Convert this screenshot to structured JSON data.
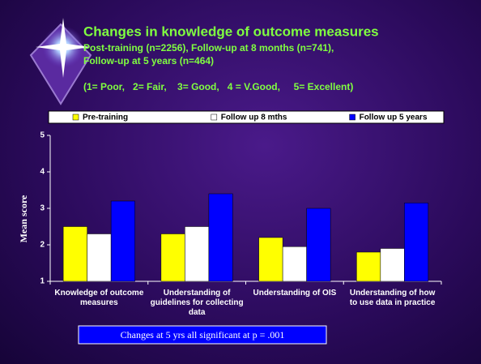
{
  "chart_data": {
    "type": "bar",
    "title": "Changes in knowledge of outcome measures",
    "subtitle": [
      "Post-training (n=2256), Follow-up at 8 months (n=741),",
      "Follow-up at 5 years (n=464)"
    ],
    "scale_note": "(1= Poor,   2= Fair,    3= Good,   4 = V.Good,     5= Excellent)",
    "y_label": "Mean score",
    "annotation": "Changes at 5 yrs all significant at p = .001",
    "categories": [
      "Knowledge of outcome measures",
      "Understanding of guidelines for collecting data",
      "Understanding of OIS",
      "Understanding of how to use data in practice"
    ],
    "series": [
      {
        "name": "Pre-training",
        "color": "#ffff00",
        "values": [
          2.5,
          2.3,
          2.2,
          1.8
        ]
      },
      {
        "name": "Follow up 8 mths",
        "color": "#ffffff",
        "values": [
          2.3,
          2.5,
          1.95,
          1.9
        ]
      },
      {
        "name": "Follow up 5 years",
        "color": "#0000ff",
        "values": [
          3.2,
          3.4,
          3.0,
          3.15
        ]
      }
    ],
    "ylim": [
      1,
      5
    ],
    "yticks": [
      1,
      2,
      3,
      4,
      5
    ],
    "legend": "top"
  }
}
